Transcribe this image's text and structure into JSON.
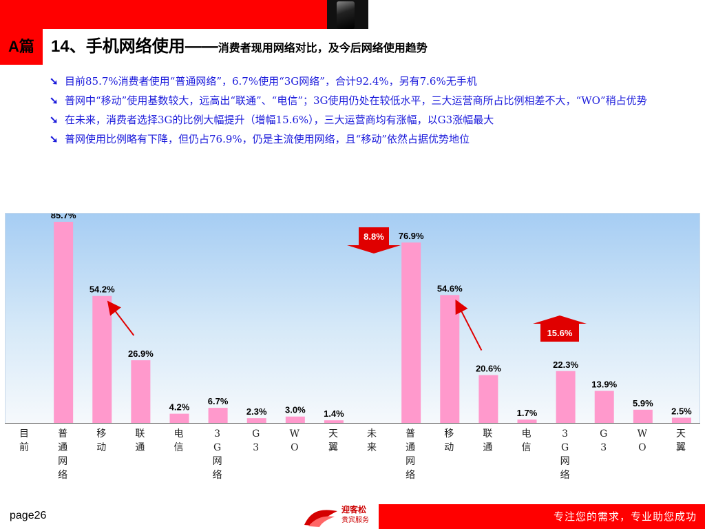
{
  "header": {
    "section_tag": "A篇",
    "title_main": "14、手机网络使用——",
    "title_sub": "消费者现用网络对比，及今后网络使用趋势"
  },
  "bullets": [
    "目前85.7%消费者使用“普通网络”，6.7%使用“3G网络”，合计92.4%，另有7.6%无手机",
    "普网中“移动”使用基数较大，远高出“联通”、“电信”；3G使用仍处在较低水平，三大运营商所占比例相差不大，“WO”稍占优势",
    "在未来，消费者选择3G的比例大幅提升（增幅15.6%），三大运营商均有涨幅，以G3涨幅最大",
    "普网使用比例略有下降，但仍占76.9%，仍是主流使用网络，且“移动”依然占据优势地位"
  ],
  "bullet_mark": "➘",
  "chart_data": {
    "type": "bar",
    "categories": [
      "目前",
      "普通网络",
      "移动",
      "联通",
      "电信",
      "3G网络",
      "G3",
      "WO",
      "天翼",
      "未来",
      "普通网络",
      "移动",
      "联通",
      "电信",
      "3G网络",
      "G3",
      "WO",
      "天翼"
    ],
    "values": [
      null,
      85.7,
      54.2,
      26.9,
      4.2,
      6.7,
      2.3,
      3.0,
      1.4,
      null,
      76.9,
      54.6,
      20.6,
      1.7,
      22.3,
      13.9,
      5.9,
      2.5
    ],
    "data_labels": [
      "",
      "85.7%",
      "54.2%",
      "26.9%",
      "4.2%",
      "6.7%",
      "2.3%",
      "3.0%",
      "1.4%",
      "",
      "76.9%",
      "54.6%",
      "20.6%",
      "1.7%",
      "22.3%",
      "13.9%",
      "5.9%",
      "2.5%"
    ],
    "ylim": [
      0,
      85.7
    ],
    "bar_color": "#ff99cc",
    "annotations": [
      {
        "text": "8.8%",
        "kind": "down-arrow"
      },
      {
        "text": "15.6%",
        "kind": "up-arrow"
      }
    ]
  },
  "footer": {
    "page_label": "page",
    "page_number": "26",
    "slogan": "专注您的需求，专业助您成功",
    "logo_name": "迎客松",
    "logo_tag": "贵宾服务"
  },
  "colors": {
    "accent": "#ff0000",
    "bullet_text": "#1a1adb",
    "arrow": "#e00000"
  }
}
